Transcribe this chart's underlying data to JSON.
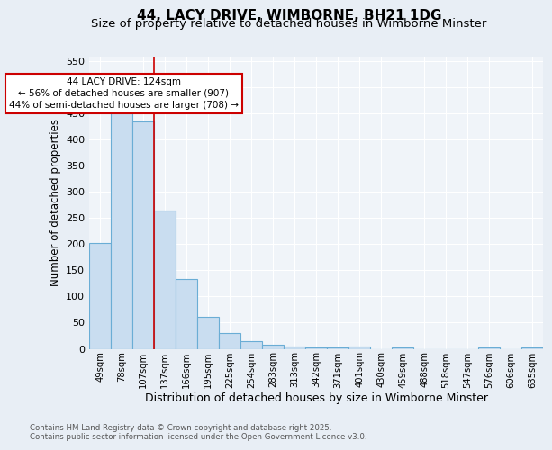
{
  "title": "44, LACY DRIVE, WIMBORNE, BH21 1DG",
  "subtitle": "Size of property relative to detached houses in Wimborne Minster",
  "xlabel": "Distribution of detached houses by size in Wimborne Minster",
  "ylabel": "Number of detached properties",
  "categories": [
    "49sqm",
    "78sqm",
    "107sqm",
    "137sqm",
    "166sqm",
    "195sqm",
    "225sqm",
    "254sqm",
    "283sqm",
    "313sqm",
    "342sqm",
    "371sqm",
    "401sqm",
    "430sqm",
    "459sqm",
    "488sqm",
    "518sqm",
    "547sqm",
    "576sqm",
    "606sqm",
    "635sqm"
  ],
  "values": [
    202,
    460,
    435,
    265,
    133,
    62,
    30,
    14,
    8,
    5,
    2,
    2,
    5,
    0,
    3,
    0,
    0,
    0,
    3,
    0,
    3
  ],
  "bar_color": "#c9ddf0",
  "bar_edge_color": "#6aadd5",
  "red_line_x": 2.5,
  "annotation_title": "44 LACY DRIVE: 124sqm",
  "annotation_line1": "← 56% of detached houses are smaller (907)",
  "annotation_line2": "44% of semi-detached houses are larger (708) →",
  "ylim": [
    0,
    560
  ],
  "yticks": [
    0,
    50,
    100,
    150,
    200,
    250,
    300,
    350,
    400,
    450,
    500,
    550
  ],
  "footnote1": "Contains HM Land Registry data © Crown copyright and database right 2025.",
  "footnote2": "Contains public sector information licensed under the Open Government Licence v3.0.",
  "bg_color": "#e8eef5",
  "plot_bg_color": "#f0f4f9",
  "grid_color": "#ffffff",
  "title_fontsize": 11,
  "subtitle_fontsize": 9.5,
  "annotation_box_color": "#ffffff",
  "annotation_box_edge": "#cc0000"
}
